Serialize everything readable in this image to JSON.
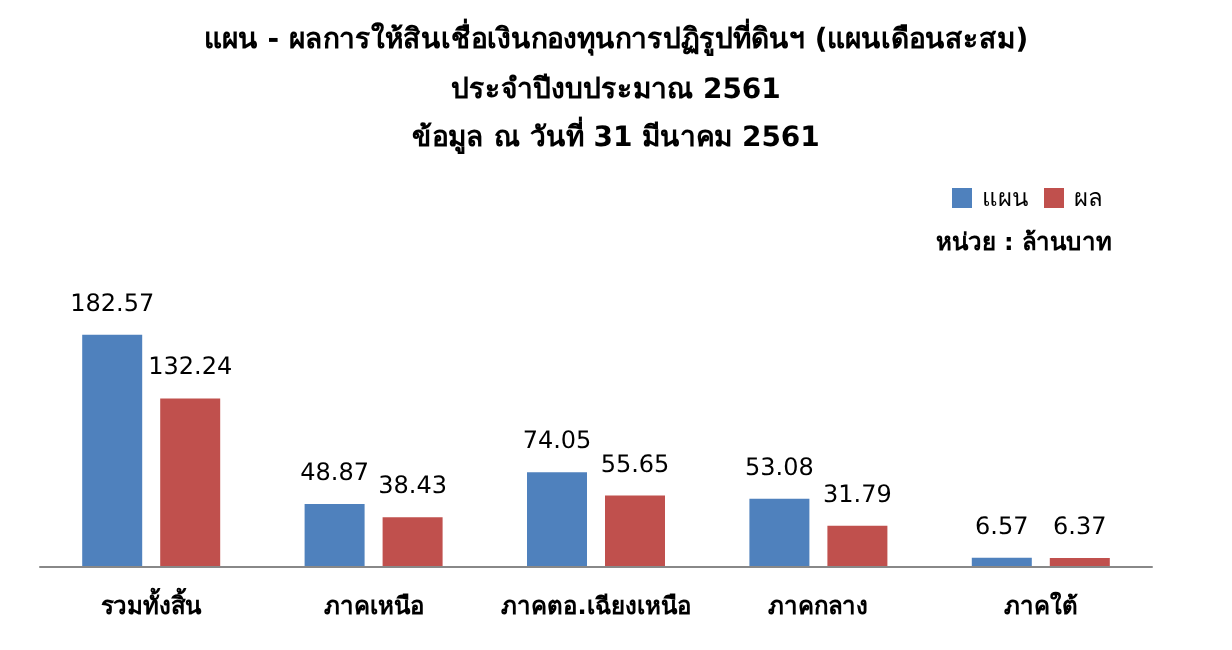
{
  "chart_data": {
    "type": "bar",
    "title": "แผน - ผลการให้สินเชื่อเงินกองทุนการปฏิรูปที่ดินฯ (แผนเดือนสะสม)",
    "subtitle": "ประจำปีงบประมาณ 2561\nข้อมูล ณ วันที่ 31 มีนาคม 2561",
    "categories": [
      "รวมทั้งสิ้น",
      "ภาคเหนือ",
      "ภาคตอ.เฉียงเหนือ",
      "ภาคกลาง",
      "ภาคใต้"
    ],
    "series": [
      {
        "name": "แผน",
        "color": "#4f81bd",
        "values": [
          182.57,
          48.87,
          74.05,
          53.08,
          6.57
        ]
      },
      {
        "name": "ผล",
        "color": "#c0504d",
        "values": [
          132.24,
          38.43,
          55.65,
          31.79,
          6.37
        ]
      }
    ],
    "annotations": [
      "หน่วย : ล้านบาท"
    ],
    "data_labels": true,
    "legend": "top right"
  }
}
